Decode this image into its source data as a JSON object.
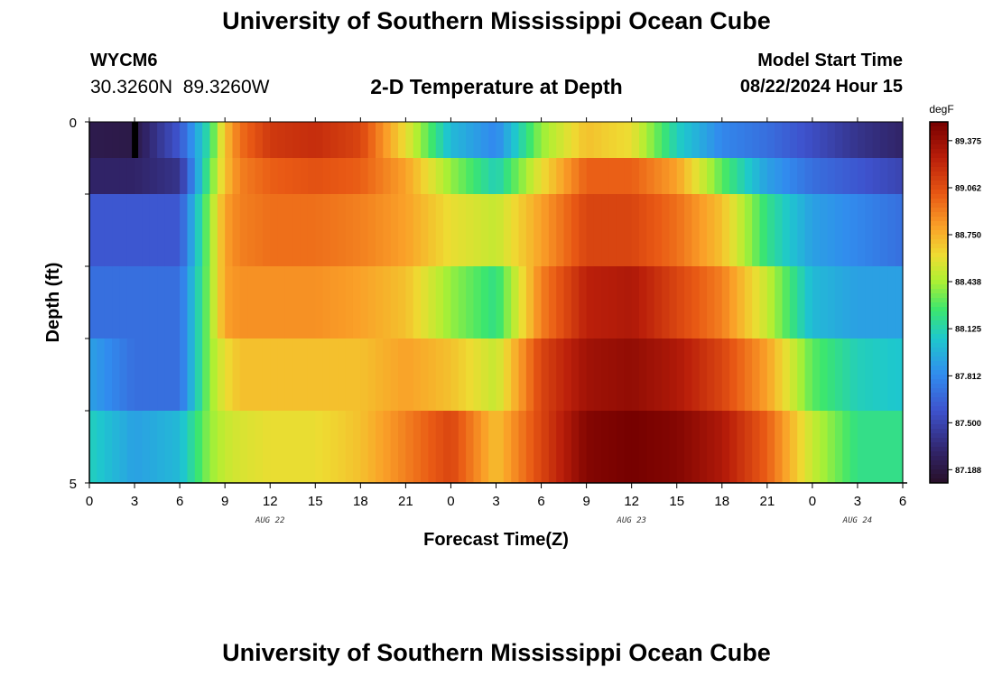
{
  "header": {
    "title": "University of Southern Mississippi Ocean Cube",
    "station_id": "WYCM6",
    "station_coords": "30.3260N  89.3260W",
    "plot_title": "2-D Temperature at Depth",
    "model_start_label": "Model Start Time",
    "model_start_value": "08/22/2024 Hour 15"
  },
  "footer": {
    "title": "University of Southern Mississippi Ocean Cube"
  },
  "chart_data": {
    "type": "heatmap",
    "title": "2-D Temperature at Depth",
    "xlabel": "Forecast Time(Z)",
    "ylabel": "Depth (ft)",
    "x_tick_labels": [
      "0",
      "3",
      "6",
      "9",
      "12",
      "15",
      "18",
      "21",
      "0",
      "3",
      "6",
      "9",
      "12",
      "15",
      "18",
      "21",
      "0",
      "3",
      "6"
    ],
    "date_labels": [
      {
        "hour_index": 12,
        "label": "AUG 22"
      },
      {
        "hour_index": 36,
        "label": "AUG 23"
      },
      {
        "hour_index": 51,
        "label": "AUG 24"
      }
    ],
    "y_tick_labels": [
      "0",
      "5"
    ],
    "ylim": [
      0,
      5
    ],
    "xlim_hours": [
      0,
      54
    ],
    "depth_rows": [
      0.0,
      0.5,
      1.5,
      2.5,
      3.5,
      4.5
    ],
    "row_key_hours": [
      0,
      3,
      6,
      8,
      9,
      10,
      12,
      15,
      18,
      21,
      24,
      27,
      30,
      33,
      36,
      39,
      42,
      45,
      48,
      51,
      54
    ],
    "row_key_values": [
      [
        87.22,
        87.2,
        87.6,
        88.2,
        88.7,
        88.95,
        89.15,
        89.2,
        89.1,
        88.6,
        88.0,
        87.8,
        88.4,
        88.7,
        88.6,
        88.1,
        87.8,
        87.7,
        87.55,
        87.4,
        87.3
      ],
      [
        87.3,
        87.3,
        87.4,
        88.3,
        88.7,
        88.9,
        89.0,
        89.05,
        89.0,
        88.8,
        88.4,
        88.1,
        88.6,
        89.0,
        89.0,
        88.8,
        88.3,
        87.9,
        87.7,
        87.6,
        87.5
      ],
      [
        87.6,
        87.6,
        87.6,
        88.4,
        88.8,
        88.9,
        88.95,
        88.95,
        88.9,
        88.8,
        88.6,
        88.5,
        88.8,
        89.1,
        89.1,
        88.95,
        88.7,
        88.2,
        87.9,
        87.8,
        87.7
      ],
      [
        87.7,
        87.7,
        87.7,
        88.4,
        88.8,
        88.85,
        88.85,
        88.85,
        88.8,
        88.7,
        88.4,
        88.2,
        88.9,
        89.25,
        89.3,
        89.1,
        88.9,
        88.5,
        88.0,
        87.9,
        87.9
      ],
      [
        87.9,
        87.7,
        87.7,
        88.4,
        88.6,
        88.7,
        88.7,
        88.7,
        88.7,
        88.8,
        88.7,
        88.5,
        89.1,
        89.35,
        89.4,
        89.3,
        89.1,
        88.8,
        88.3,
        88.1,
        88.05
      ],
      [
        88.1,
        87.9,
        88.0,
        88.4,
        88.5,
        88.55,
        88.6,
        88.6,
        88.7,
        88.9,
        89.1,
        88.7,
        89.1,
        89.45,
        89.5,
        89.45,
        89.3,
        89.0,
        88.5,
        88.2,
        88.2
      ]
    ],
    "colorbar": {
      "unit": "degF",
      "min": 87.1,
      "max": 89.5,
      "tick_values": [
        87.188,
        87.5,
        87.812,
        88.125,
        88.438,
        88.75,
        89.062,
        89.375
      ],
      "tick_labels": [
        "87.188",
        "87.500",
        "87.812",
        "88.125",
        "88.438",
        "88.750",
        "89.062",
        "89.375"
      ]
    },
    "now_marker_hour": 3,
    "grid": false
  }
}
